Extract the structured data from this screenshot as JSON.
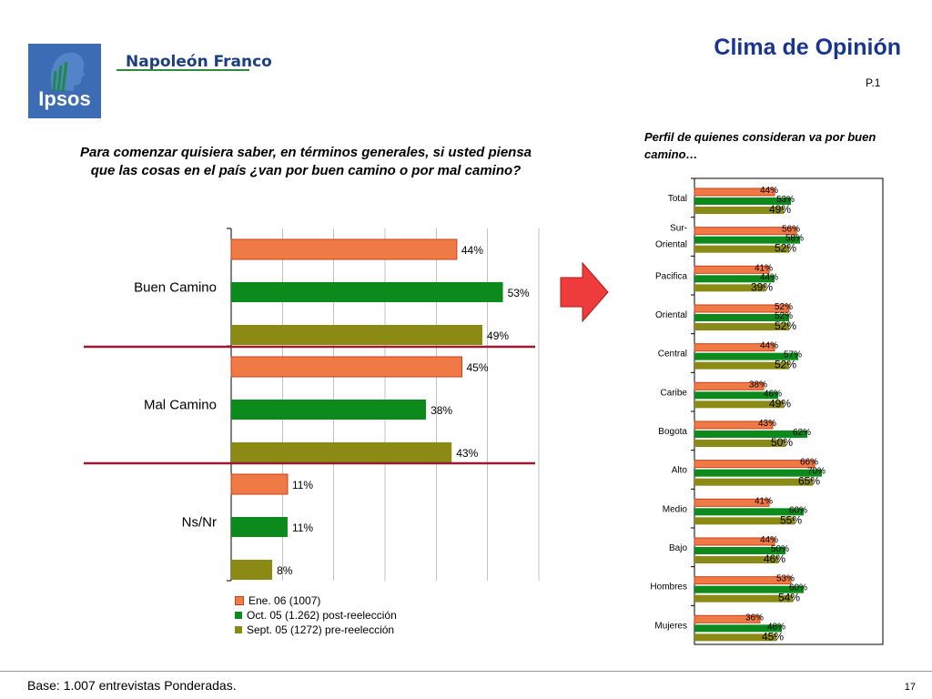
{
  "header": {
    "logo_text": "Ipsos",
    "brand": "Napoleón Franco",
    "title": "Clima de Opinión",
    "page_code": "P.1"
  },
  "question": "Para comenzar quisiera saber, en términos generales, si usted piensa que las cosas en el país ¿van por buen camino o por mal camino?",
  "perfil_title": "Perfil de quienes consideran va por buen camino…",
  "footer": {
    "base": "Base: 1.007 entrevistas Ponderadas.",
    "page_number": "17"
  },
  "colors": {
    "ene": "#f07a45",
    "oct": "#0c8a1c",
    "sept": "#8a8a14",
    "title": "#1a3590",
    "arrow": "#ee3b3b",
    "divider": "#9b1b2e"
  },
  "chart_data": [
    {
      "type": "bar",
      "orientation": "horizontal",
      "categories": [
        "Buen Camino",
        "Mal Camino",
        "Ns/Nr"
      ],
      "series": [
        {
          "name": "Ene. 06 (1007)",
          "values": [
            44,
            45,
            11
          ]
        },
        {
          "name": "Oct. 05 (1.262) post-reelección",
          "values": [
            53,
            38,
            11
          ]
        },
        {
          "name": "Sept. 05 (1272) pre-reelección",
          "values": [
            49,
            43,
            8
          ]
        }
      ],
      "value_suffix": "%",
      "xlim": [
        0,
        60
      ],
      "grid": true,
      "legend": "bottom"
    },
    {
      "type": "bar",
      "orientation": "horizontal",
      "categories": [
        "Total",
        "Sur-\nOriental",
        "Pacifica",
        "Oriental",
        "Central",
        "Caribe",
        "Bogota",
        "Alto",
        "Medio",
        "Bajo",
        "Hombres",
        "Mujeres"
      ],
      "series": [
        {
          "name": "Ene. 06 (1007)",
          "values": [
            44,
            56,
            41,
            52,
            44,
            38,
            43,
            66,
            41,
            44,
            53,
            36
          ]
        },
        {
          "name": "Oct. 05 (1.262) post-reelección",
          "values": [
            53,
            58,
            44,
            52,
            57,
            46,
            62,
            70,
            60,
            50,
            60,
            48
          ]
        },
        {
          "name": "Sept. 05 (1272) pre-reelección",
          "values": [
            49,
            52,
            39,
            52,
            52,
            49,
            50,
            65,
            55,
            46,
            54,
            45
          ]
        }
      ],
      "value_suffix": "%",
      "xlim": [
        0,
        100
      ],
      "legend": "none"
    }
  ]
}
